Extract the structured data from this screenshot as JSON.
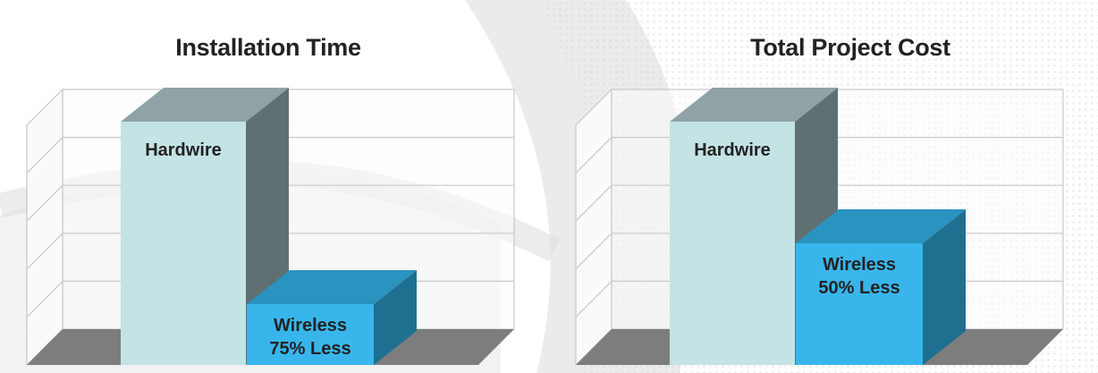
{
  "colors": {
    "hardwire_front": "#c4e3e4",
    "hardwire_side": "#5f7073",
    "hardwire_top": "#8fa3a6",
    "wireless_front": "#38b6ec",
    "wireless_side": "#1f6f90",
    "wireless_top": "#2a93c0",
    "floor": "#7d7d7d",
    "grid": "#c9c9c9",
    "label": "#222222"
  },
  "chart_data": [
    {
      "type": "bar",
      "title": "Installation Time",
      "categories": [
        "Hardwire",
        "Wireless"
      ],
      "values": [
        100,
        25
      ],
      "bar_labels": [
        [
          "Hardwire"
        ],
        [
          "Wireless",
          "75% Less"
        ]
      ],
      "xlabel": "",
      "ylabel": "",
      "ylim": [
        0,
        100
      ],
      "grid": true,
      "style": "3d"
    },
    {
      "type": "bar",
      "title": "Total Project Cost",
      "categories": [
        "Hardwire",
        "Wireless"
      ],
      "values": [
        100,
        50
      ],
      "bar_labels": [
        [
          "Hardwire"
        ],
        [
          "Wireless",
          "50% Less"
        ]
      ],
      "xlabel": "",
      "ylabel": "",
      "ylim": [
        0,
        100
      ],
      "grid": true,
      "style": "3d"
    }
  ]
}
